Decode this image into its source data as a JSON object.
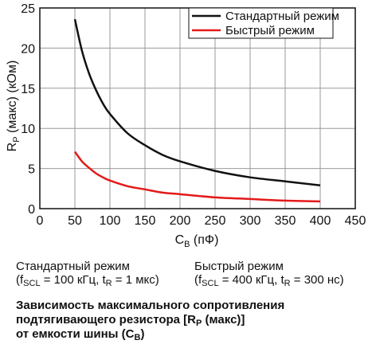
{
  "chart_data": {
    "type": "line",
    "xlabel_main": "C",
    "xlabel_sub": "B",
    "xlabel_unit": " (пФ)",
    "ylabel_main": "R",
    "ylabel_sub": "P",
    "ylabel_unit": " (макс) (кОм)",
    "xlim": [
      0,
      450
    ],
    "ylim": [
      0,
      25
    ],
    "x_ticks": [
      "0",
      "50",
      "100",
      "150",
      "200",
      "250",
      "300",
      "350",
      "400",
      "450"
    ],
    "y_ticks": [
      "0",
      "5",
      "10",
      "15",
      "20",
      "25"
    ],
    "grid": true,
    "legend_position": "top-right",
    "series": [
      {
        "name": "Стандартный режим",
        "color": "#111111",
        "x": [
          50,
          60,
          70,
          80,
          90,
          100,
          125,
          150,
          175,
          200,
          250,
          300,
          350,
          400
        ],
        "y": [
          23.6,
          19.7,
          16.9,
          14.8,
          13.1,
          11.8,
          9.4,
          7.9,
          6.7,
          5.9,
          4.7,
          3.9,
          3.4,
          2.9
        ]
      },
      {
        "name": "Быстрый режим",
        "color": "#e41a1a",
        "x": [
          50,
          60,
          70,
          80,
          90,
          100,
          125,
          150,
          175,
          200,
          250,
          300,
          350,
          400
        ],
        "y": [
          7.1,
          5.9,
          5.1,
          4.4,
          3.9,
          3.5,
          2.8,
          2.4,
          2.0,
          1.8,
          1.4,
          1.2,
          1.0,
          0.9
        ]
      }
    ]
  },
  "notes": {
    "standard_title": "Стандартный режим",
    "standard_params": {
      "p1": "(f",
      "p1_sub": "SCL",
      "p2": " = 100 кГц, t",
      "p2_sub": "R",
      "p3": " = 1 мкс)"
    },
    "fast_title": "Быстрый режим",
    "fast_params": {
      "p1": "(f",
      "p1_sub": "SCL",
      "p2": " = 400 кГц, t",
      "p2_sub": "R",
      "p3": " = 300 нс)"
    }
  },
  "caption": {
    "line1": "Зависимость максимального сопротивления",
    "line2_a": "подтягивающего резистора [R",
    "line2_sub": "P",
    "line2_b": " (макс)]",
    "line3_a": "от емкости шины (C",
    "line3_sub": "B",
    "line3_b": ")"
  }
}
